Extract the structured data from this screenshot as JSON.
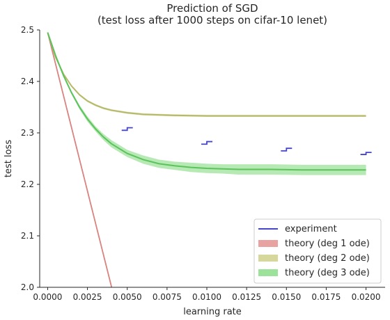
{
  "chart_data": {
    "type": "line",
    "title": [
      "Prediction of SGD",
      "(test loss after 1000 steps on cifar-10 lenet)"
    ],
    "xlabel": "learning rate",
    "ylabel": "test loss",
    "xlim": [
      -0.0005,
      0.0212
    ],
    "ylim": [
      2.0,
      2.5
    ],
    "xticks": [
      "0.0000",
      "0.0025",
      "0.0050",
      "0.0075",
      "0.0100",
      "0.0125",
      "0.0150",
      "0.0175",
      "0.0200"
    ],
    "yticks": [
      "2.0",
      "2.1",
      "2.2",
      "2.3",
      "2.4",
      "2.5"
    ],
    "legend_position": "lower-right",
    "experiment": {
      "name": "experiment",
      "color": "#4444cc",
      "points": [
        {
          "x": 0.005,
          "y_low": 2.305,
          "y_high": 2.31
        },
        {
          "x": 0.01,
          "y_low": 2.278,
          "y_high": 2.283
        },
        {
          "x": 0.015,
          "y_low": 2.265,
          "y_high": 2.27
        },
        {
          "x": 0.02,
          "y_low": 2.258,
          "y_high": 2.262
        }
      ]
    },
    "series": [
      {
        "name": "theory (deg 1 ode)",
        "color": "#d9827f",
        "band_color": "#e8a3a1",
        "x": [
          0.0,
          0.0041
        ],
        "y": [
          2.495,
          1.99
        ]
      },
      {
        "name": "theory (deg 2 ode)",
        "color": "#b7b96a",
        "band_color": "#d6d79a",
        "x": [
          0.0,
          0.0005,
          0.001,
          0.0015,
          0.002,
          0.0025,
          0.003,
          0.0035,
          0.004,
          0.005,
          0.006,
          0.007,
          0.008,
          0.01,
          0.012,
          0.015,
          0.02
        ],
        "y": [
          2.495,
          2.447,
          2.414,
          2.391,
          2.374,
          2.362,
          2.354,
          2.348,
          2.344,
          2.339,
          2.336,
          2.335,
          2.334,
          2.333,
          2.333,
          2.333,
          2.333
        ],
        "band": [
          0.002,
          0.002,
          0.002,
          0.002,
          0.002,
          0.002,
          0.002,
          0.002,
          0.002,
          0.002,
          0.002,
          0.002,
          0.002,
          0.002,
          0.002,
          0.002,
          0.002
        ]
      },
      {
        "name": "theory (deg 3 ode)",
        "color": "#5cc35c",
        "band_color": "#9de29a",
        "x": [
          0.0,
          0.0005,
          0.001,
          0.0015,
          0.002,
          0.0025,
          0.003,
          0.0035,
          0.004,
          0.005,
          0.006,
          0.007,
          0.008,
          0.009,
          0.01,
          0.011,
          0.012,
          0.014,
          0.016,
          0.018,
          0.02
        ],
        "y": [
          2.495,
          2.45,
          2.411,
          2.378,
          2.35,
          2.327,
          2.308,
          2.292,
          2.279,
          2.26,
          2.248,
          2.24,
          2.236,
          2.233,
          2.231,
          2.23,
          2.229,
          2.229,
          2.228,
          2.228,
          2.228
        ],
        "band": [
          0.0,
          0.001,
          0.002,
          0.003,
          0.004,
          0.005,
          0.005,
          0.006,
          0.007,
          0.007,
          0.008,
          0.008,
          0.008,
          0.009,
          0.009,
          0.009,
          0.01,
          0.01,
          0.01,
          0.01,
          0.01
        ]
      }
    ]
  }
}
